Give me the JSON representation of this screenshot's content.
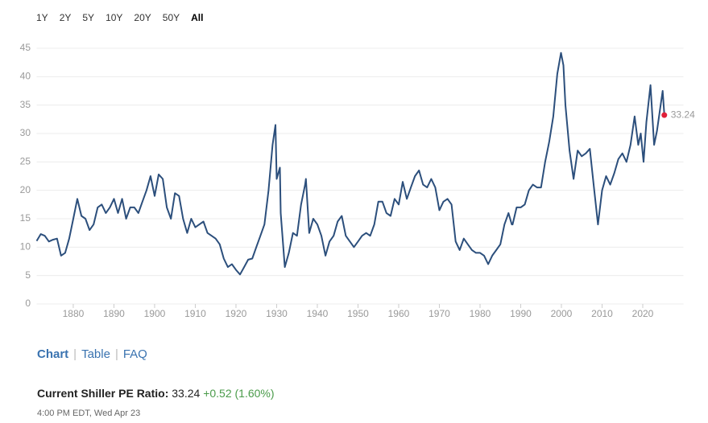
{
  "ranges": [
    "1Y",
    "2Y",
    "5Y",
    "10Y",
    "20Y",
    "50Y",
    "All"
  ],
  "tabs": [
    "Chart",
    "Table",
    "FAQ"
  ],
  "quote": {
    "label": "Current Shiller PE Ratio:",
    "value": "33.24",
    "change": "+0.52 (1.60%)",
    "time": "4:00 PM EDT, Wed Apr 23"
  },
  "chart_data": {
    "type": "line",
    "color": "#2c4f7c",
    "marker_color": "#e0203a",
    "grid": true,
    "xlim": [
      1871,
      2030
    ],
    "xticks": [
      1880,
      1890,
      1900,
      1910,
      1920,
      1930,
      1940,
      1950,
      1960,
      1970,
      1980,
      1990,
      2000,
      2010,
      2020
    ],
    "ylim": [
      0,
      45
    ],
    "yticks": [
      0,
      5,
      10,
      15,
      20,
      25,
      30,
      35,
      40,
      45
    ],
    "x": [
      1871,
      1872,
      1873,
      1874,
      1875,
      1876,
      1877,
      1878,
      1879,
      1880,
      1881,
      1882,
      1883,
      1884,
      1885,
      1886,
      1887,
      1888,
      1889,
      1890,
      1891,
      1892,
      1893,
      1894,
      1895,
      1896,
      1897,
      1898,
      1899,
      1900,
      1901,
      1902,
      1903,
      1904,
      1905,
      1906,
      1907,
      1908,
      1909,
      1910,
      1911,
      1912,
      1913,
      1914,
      1915,
      1916,
      1917,
      1918,
      1919,
      1920,
      1921,
      1922,
      1923,
      1924,
      1925,
      1926,
      1927,
      1928,
      1929,
      1929.7,
      1930,
      1930.8,
      1931,
      1932,
      1933,
      1934,
      1935,
      1936,
      1937,
      1937.2,
      1938,
      1939,
      1940,
      1941,
      1942,
      1943,
      1944,
      1945,
      1946,
      1947,
      1948,
      1949,
      1950,
      1951,
      1952,
      1953,
      1954,
      1955,
      1956,
      1957,
      1958,
      1959,
      1960,
      1961,
      1962,
      1963,
      1964,
      1965,
      1966,
      1967,
      1968,
      1969,
      1970,
      1971,
      1972,
      1973,
      1974,
      1975,
      1976,
      1977,
      1978,
      1979,
      1980,
      1981,
      1982,
      1983,
      1984,
      1985,
      1986,
      1987,
      1987.8,
      1988,
      1989,
      1990,
      1991,
      1992,
      1993,
      1994,
      1995,
      1996,
      1997,
      1998,
      1999,
      1999.9,
      2000.5,
      2001,
      2002,
      2003,
      2004,
      2005,
      2006,
      2007,
      2008,
      2009,
      2010,
      2011,
      2012,
      2013,
      2014,
      2015,
      2016,
      2017,
      2018,
      2018.9,
      2019.5,
      2020.2,
      2020.9,
      2021.9,
      2022.8,
      2023.5,
      2024.5,
      2024.9,
      2025.3
    ],
    "values": [
      11.1,
      12.3,
      12.0,
      11.0,
      11.3,
      11.5,
      8.5,
      9.0,
      11.5,
      15.0,
      18.5,
      15.5,
      15.0,
      13.0,
      14.0,
      17.0,
      17.5,
      16.0,
      17.0,
      18.5,
      16.0,
      18.5,
      15.0,
      17.0,
      17.0,
      16.0,
      18.0,
      20.0,
      22.5,
      19.0,
      22.8,
      22.0,
      17.0,
      15.0,
      19.5,
      19.0,
      15.0,
      12.5,
      15.0,
      13.5,
      14.0,
      14.5,
      12.5,
      12.0,
      11.5,
      10.5,
      8.0,
      6.5,
      7.0,
      6.0,
      5.2,
      6.5,
      7.8,
      8.0,
      10.0,
      12.0,
      14.0,
      20.0,
      28.0,
      31.5,
      22.0,
      24.0,
      16.0,
      6.5,
      9.0,
      12.5,
      12.0,
      17.5,
      21.0,
      22.0,
      12.5,
      15.0,
      14.0,
      12.0,
      8.5,
      11.0,
      12.0,
      14.5,
      15.5,
      12.0,
      11.0,
      10.0,
      11.0,
      12.0,
      12.5,
      12.0,
      14.0,
      18.0,
      18.0,
      16.0,
      15.5,
      18.5,
      17.5,
      21.5,
      18.5,
      20.5,
      22.5,
      23.5,
      21.0,
      20.5,
      22.0,
      20.5,
      16.5,
      18.0,
      18.5,
      17.5,
      11.0,
      9.5,
      11.5,
      10.5,
      9.5,
      9.0,
      9.0,
      8.5,
      7.0,
      8.5,
      9.5,
      10.5,
      14.0,
      16.0,
      14.0,
      14.0,
      17.0,
      17.0,
      17.5,
      20.0,
      21.0,
      20.5,
      20.5,
      25.0,
      28.5,
      33.0,
      40.5,
      44.2,
      42.0,
      35.0,
      27.0,
      22.0,
      27.0,
      26.0,
      26.5,
      27.3,
      20.5,
      14.0,
      20.0,
      22.5,
      21.0,
      23.0,
      25.5,
      26.5,
      25.0,
      28.0,
      33.0,
      28.0,
      30.0,
      25.0,
      32.0,
      38.5,
      28.0,
      30.5,
      35.5,
      37.5,
      33.24
    ]
  }
}
